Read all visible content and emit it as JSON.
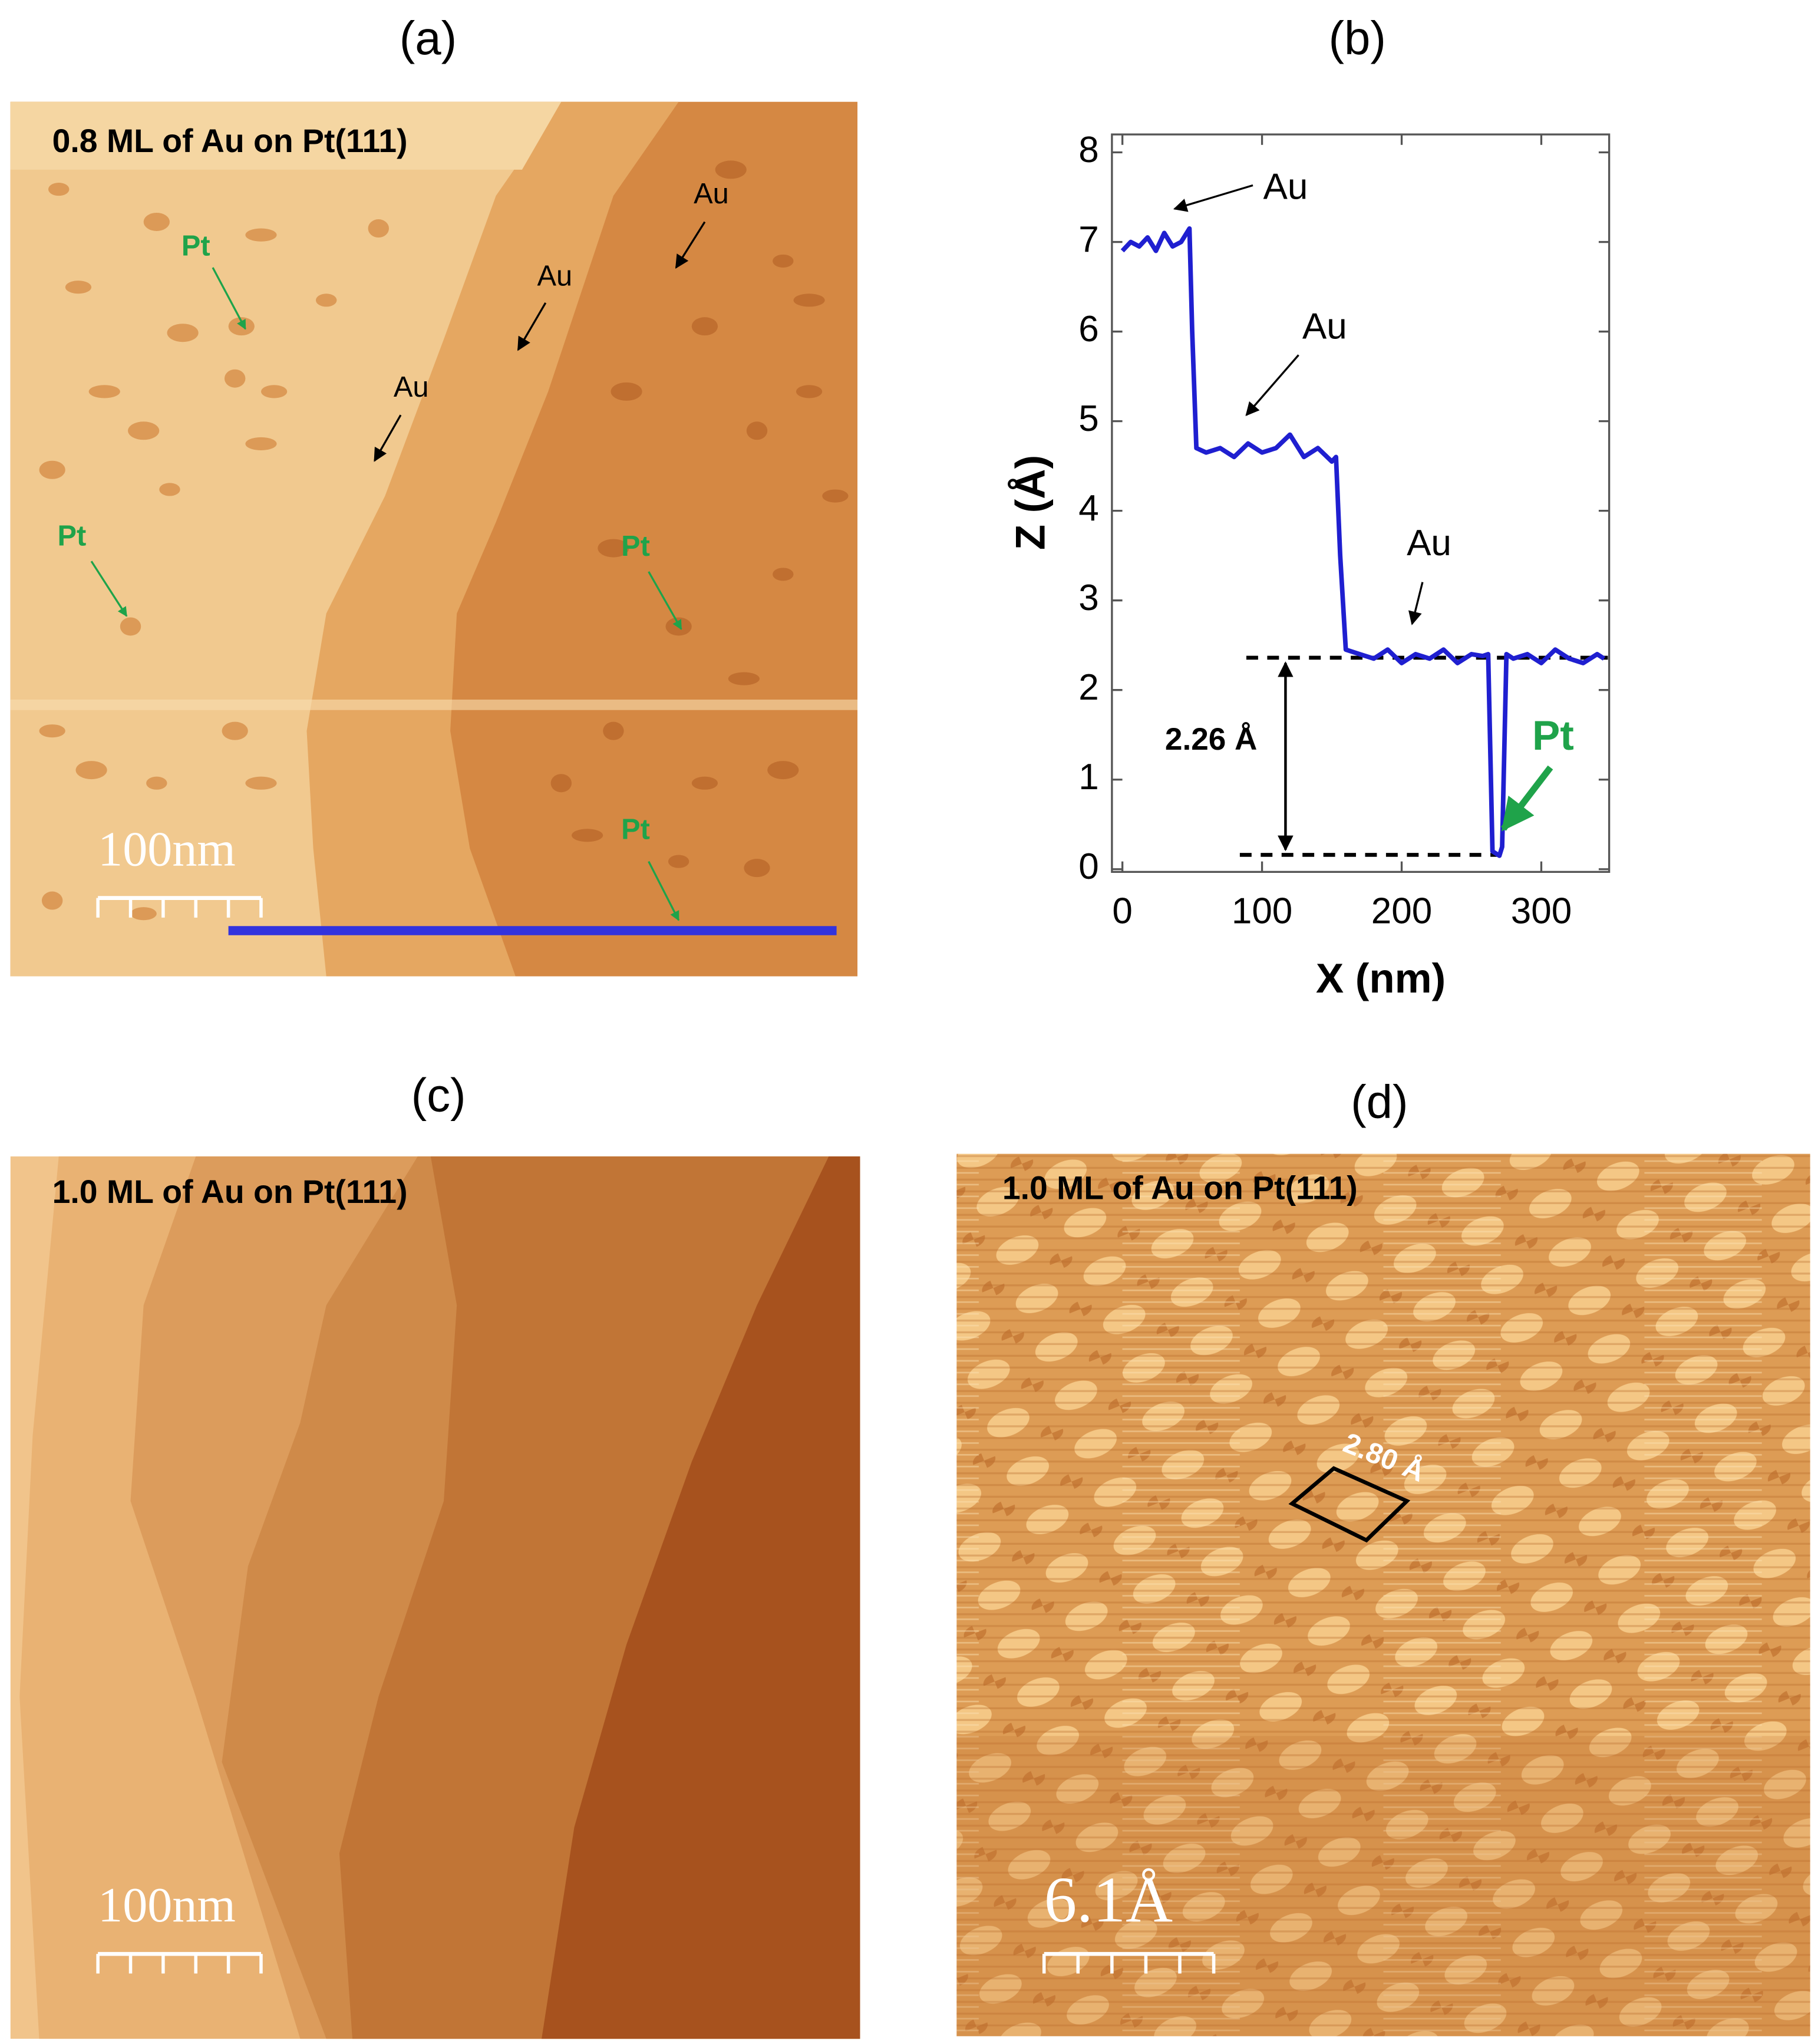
{
  "figure": {
    "panel_labels": [
      "(a)",
      "(b)",
      "(c)",
      "(d)"
    ]
  },
  "panels": {
    "a": {
      "caption": "0.8 ML of Au on Pt(111)",
      "labels": [
        "Pt",
        "Au",
        "Au",
        "Au",
        "Pt",
        "Pt",
        "Pt"
      ],
      "scale_bar": "100nm"
    },
    "c": {
      "caption": "1.0 ML of Au on Pt(111)",
      "scale_bar": "100nm"
    },
    "d": {
      "caption": "1.0 ML of Au on Pt(111)",
      "cell_label": "2.80 Å",
      "scale_bar": "6.1Å"
    }
  },
  "chart_data": {
    "type": "line",
    "xlabel": "X (nm)",
    "ylabel": "Z (Å)",
    "x": [
      0,
      6,
      12,
      18,
      24,
      30,
      36,
      42,
      48,
      50,
      53,
      60,
      70,
      80,
      90,
      100,
      110,
      120,
      130,
      140,
      150,
      153,
      156,
      160,
      170,
      180,
      190,
      200,
      210,
      220,
      230,
      240,
      250,
      258,
      262,
      265,
      270,
      272,
      275,
      280,
      290,
      300,
      310,
      320,
      330,
      340,
      345
    ],
    "values": [
      6.9,
      7.0,
      6.95,
      7.05,
      6.9,
      7.1,
      6.95,
      7.0,
      7.15,
      6.0,
      4.7,
      4.65,
      4.7,
      4.6,
      4.75,
      4.65,
      4.7,
      4.85,
      4.6,
      4.7,
      4.55,
      4.6,
      3.5,
      2.45,
      2.4,
      2.35,
      2.45,
      2.3,
      2.4,
      2.35,
      2.45,
      2.3,
      2.4,
      2.38,
      2.4,
      0.2,
      0.15,
      0.25,
      2.4,
      2.35,
      2.4,
      2.3,
      2.45,
      2.35,
      2.3,
      2.4,
      2.35
    ],
    "color": "#1f1fd0",
    "xlim": [
      -7.5,
      348.6
    ],
    "ylim": [
      -0.03,
      8.2
    ],
    "xticks": [
      0,
      100,
      200,
      300
    ],
    "yticks": [
      0,
      1,
      2,
      3,
      4,
      5,
      6,
      7,
      8
    ],
    "annotations": [
      "Au",
      "Au",
      "Au",
      "Pt"
    ],
    "reference_lines": [
      2.36,
      0.16
    ],
    "step_label": "2.26 Å"
  }
}
